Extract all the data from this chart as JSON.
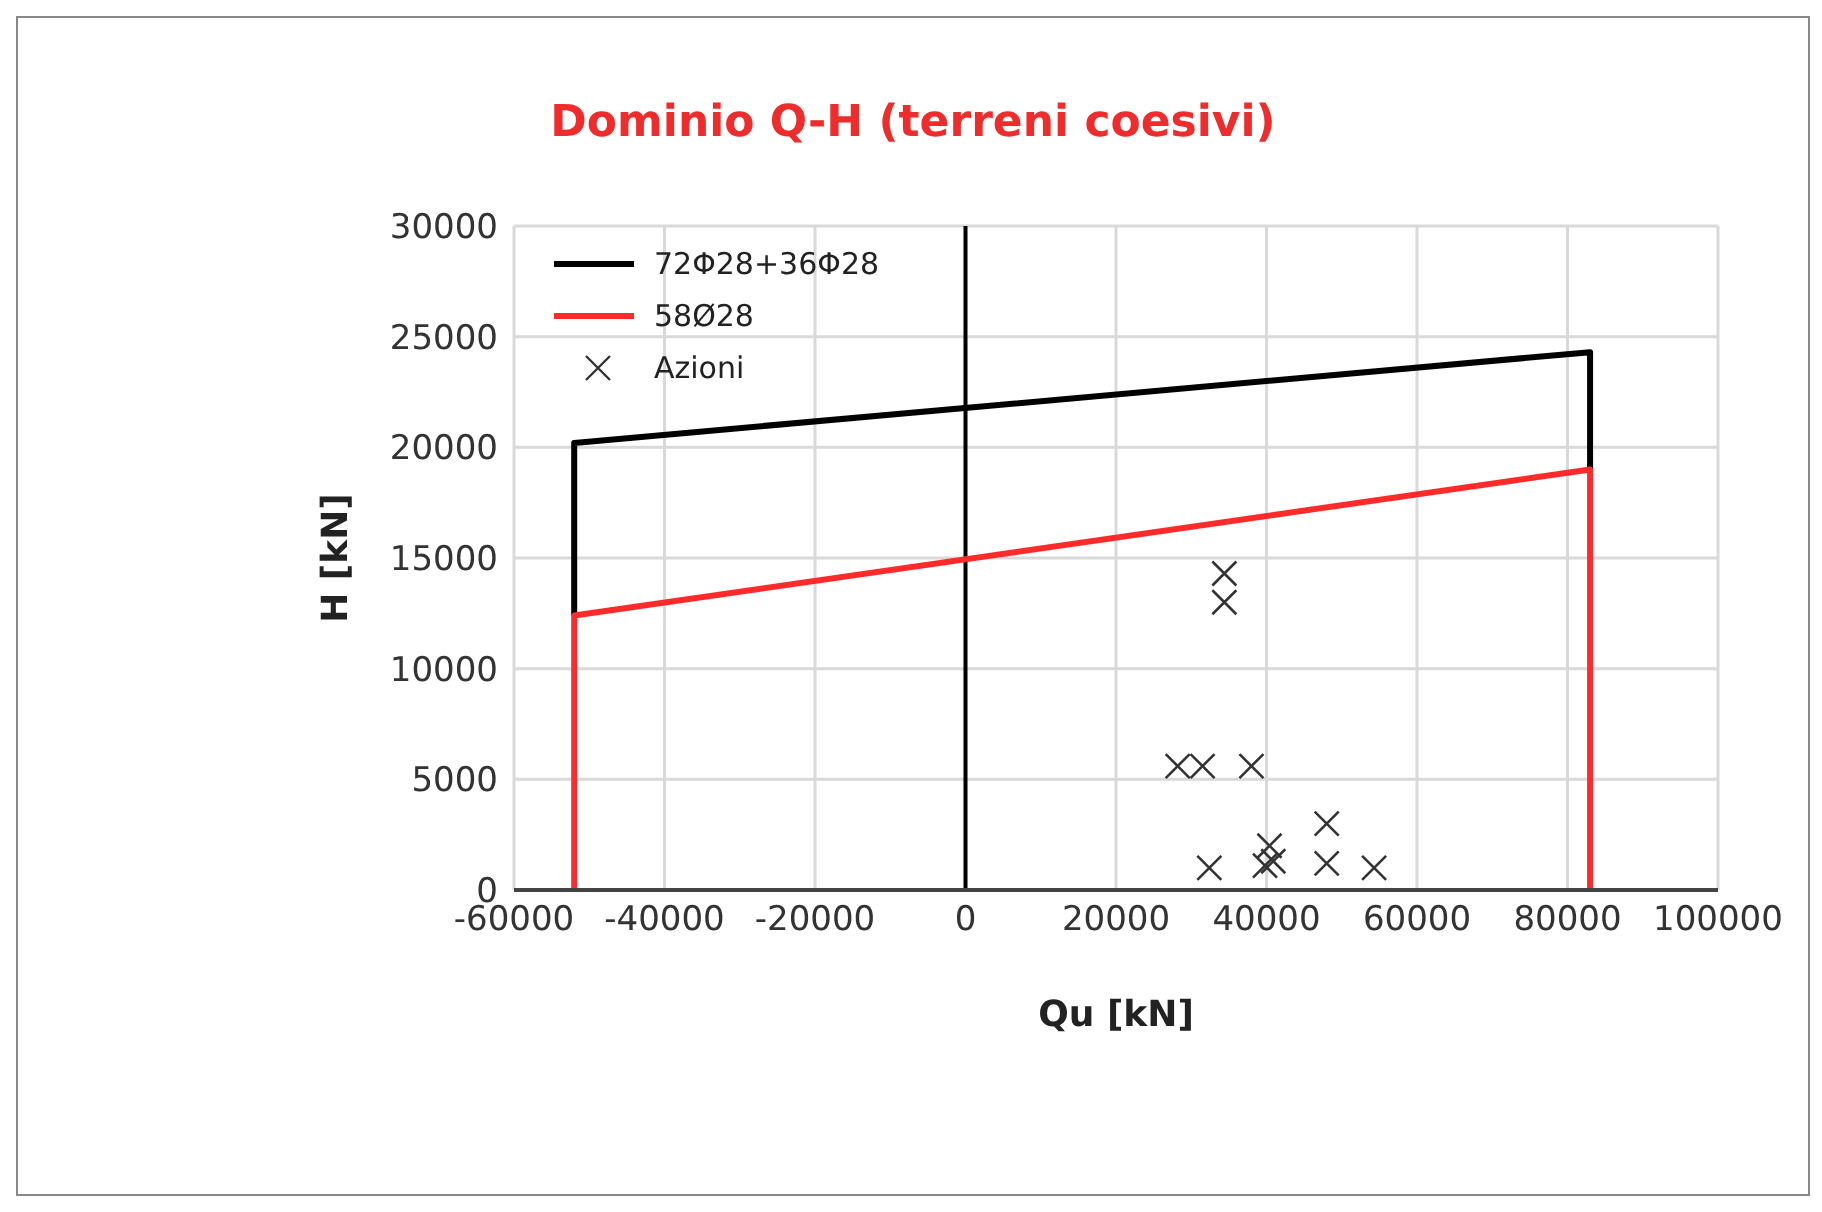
{
  "chart_data": {
    "type": "line",
    "title": "Dominio Q-H (terreni coesivi)",
    "xlabel": "Qu [kN]",
    "ylabel": "H [kN]",
    "series": [
      {
        "name": "72Φ28+36Φ28",
        "color": "#000000",
        "x": [
          -52000,
          -52000,
          83000,
          83000
        ],
        "values": [
          12400,
          20200,
          24300,
          19000
        ]
      },
      {
        "name": "58Ø28",
        "color": "#ff2b2b",
        "x": [
          -52000,
          -52000,
          83000,
          83000
        ],
        "values": [
          0,
          12400,
          19000,
          0
        ]
      },
      {
        "name": "Azioni",
        "color": "#333333",
        "type": "scatter",
        "marker": "cross",
        "x": [
          34400,
          34400,
          28200,
          31500,
          38000,
          48000,
          32400,
          40400,
          39800,
          40900,
          48000,
          54300
        ],
        "values": [
          14300,
          13000,
          5600,
          5600,
          5600,
          3000,
          1000,
          2000,
          1100,
          1300,
          1200,
          1000
        ]
      }
    ],
    "ref_lines": [
      {
        "axis": "x",
        "value": 0,
        "color": "#000000"
      }
    ],
    "xlim": [
      -60000,
      100000
    ],
    "xticks": [
      -60000,
      -40000,
      -20000,
      0,
      20000,
      40000,
      60000,
      80000,
      100000
    ],
    "ylim": [
      0,
      30000
    ],
    "yticks": [
      0,
      5000,
      10000,
      15000,
      20000,
      25000,
      30000
    ],
    "grid": true,
    "legend": "top left",
    "line_style": "solid"
  }
}
